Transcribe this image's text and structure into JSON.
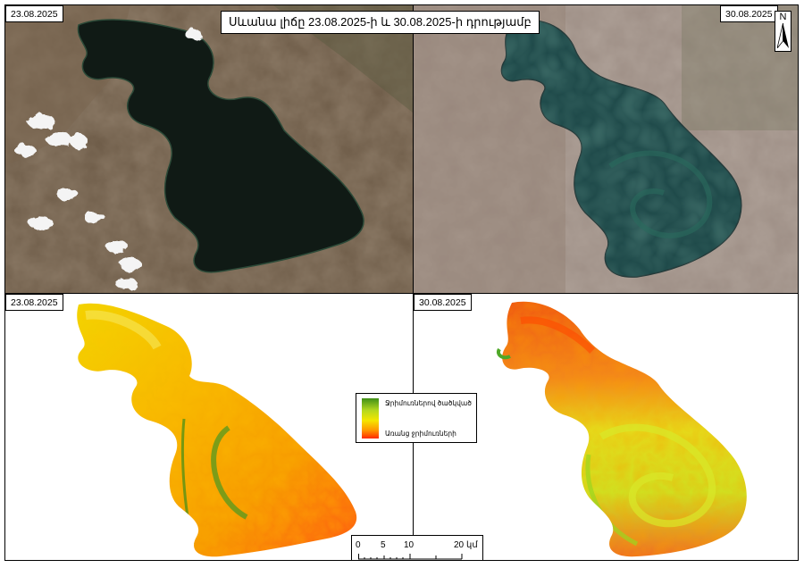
{
  "title": "Սևանա լիճը 23.08.2025-ի և 30.08.2025-ի դրությամբ",
  "panels": {
    "top_left": {
      "date": "23.08.2025",
      "kind": "satellite-true-color"
    },
    "top_right": {
      "date": "30.08.2025",
      "kind": "satellite-true-color"
    },
    "bottom_left": {
      "date": "23.08.2025",
      "kind": "algae-index"
    },
    "bottom_right": {
      "date": "30.08.2025",
      "kind": "algae-index"
    }
  },
  "north_arrow": {
    "label": "N",
    "icon": "north-arrow-icon"
  },
  "legend": {
    "high_label": "Ջրիմուռներով ծածկված",
    "low_label": "Առանց ջրիմուռների",
    "colors": [
      "#3f8f18",
      "#b5d81f",
      "#f4e600",
      "#ff9500",
      "#ff2a00"
    ]
  },
  "scale_bar": {
    "ticks": [
      "0",
      "5",
      "10",
      "20"
    ],
    "unit": "կմ"
  }
}
